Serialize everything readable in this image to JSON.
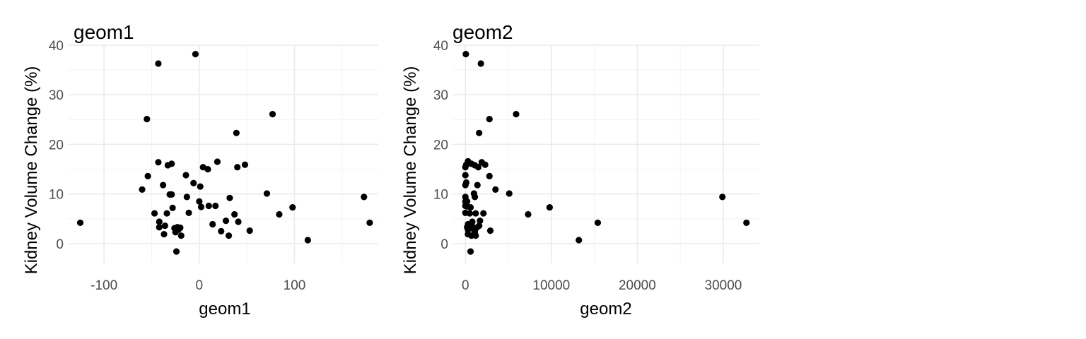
{
  "chart_data": [
    {
      "type": "scatter",
      "title": "geom1",
      "xlabel": "geom1",
      "ylabel": "Kidney Volume Change (%)",
      "xlim": [
        -138,
        188
      ],
      "ylim": [
        -4,
        40
      ],
      "xticks": [
        -100,
        0,
        100
      ],
      "xminor": [
        -50,
        50,
        150
      ],
      "yticks": [
        0,
        10,
        20,
        30,
        40
      ],
      "yminor": [
        5,
        15,
        25,
        35
      ],
      "grid": true,
      "points": [
        {
          "x": -125,
          "y": 4.2
        },
        {
          "x": -60,
          "y": 10.9
        },
        {
          "x": -55,
          "y": 25.1
        },
        {
          "x": -54,
          "y": 13.6
        },
        {
          "x": -47,
          "y": 6.1
        },
        {
          "x": -43,
          "y": 36.3
        },
        {
          "x": -43,
          "y": 16.4
        },
        {
          "x": -42,
          "y": 4.4
        },
        {
          "x": -42,
          "y": 3.3
        },
        {
          "x": -38,
          "y": 11.8
        },
        {
          "x": -37,
          "y": 1.9
        },
        {
          "x": -36,
          "y": 3.6
        },
        {
          "x": -34,
          "y": 6.1
        },
        {
          "x": -33,
          "y": 15.8
        },
        {
          "x": -31,
          "y": 9.9
        },
        {
          "x": -29,
          "y": 9.9
        },
        {
          "x": -29,
          "y": 16.1
        },
        {
          "x": -28,
          "y": 7.2
        },
        {
          "x": -26,
          "y": 3.1
        },
        {
          "x": -25,
          "y": 2.3
        },
        {
          "x": -24,
          "y": -1.6
        },
        {
          "x": -23,
          "y": 3.3
        },
        {
          "x": -22,
          "y": 2.8
        },
        {
          "x": -20,
          "y": 3.2
        },
        {
          "x": -19,
          "y": 1.6
        },
        {
          "x": -14,
          "y": 13.8
        },
        {
          "x": -13,
          "y": 9.4
        },
        {
          "x": -11,
          "y": 6.2
        },
        {
          "x": -6,
          "y": 12.2
        },
        {
          "x": -4,
          "y": 38.2
        },
        {
          "x": 0,
          "y": 8.5
        },
        {
          "x": 1,
          "y": 11.5
        },
        {
          "x": 2,
          "y": 7.4
        },
        {
          "x": 4,
          "y": 15.4
        },
        {
          "x": 9,
          "y": 15.0
        },
        {
          "x": 10,
          "y": 7.6
        },
        {
          "x": 14,
          "y": 3.9
        },
        {
          "x": 17,
          "y": 7.6
        },
        {
          "x": 19,
          "y": 16.5
        },
        {
          "x": 23,
          "y": 2.5
        },
        {
          "x": 28,
          "y": 4.6
        },
        {
          "x": 31,
          "y": 1.6
        },
        {
          "x": 32,
          "y": 9.2
        },
        {
          "x": 37,
          "y": 5.9
        },
        {
          "x": 39,
          "y": 22.3
        },
        {
          "x": 40,
          "y": 15.4
        },
        {
          "x": 41,
          "y": 4.4
        },
        {
          "x": 48,
          "y": 15.9
        },
        {
          "x": 53,
          "y": 2.6
        },
        {
          "x": 71,
          "y": 10.1
        },
        {
          "x": 77,
          "y": 26.1
        },
        {
          "x": 84,
          "y": 5.9
        },
        {
          "x": 98,
          "y": 7.3
        },
        {
          "x": 114,
          "y": 0.7
        },
        {
          "x": 173,
          "y": 9.4
        },
        {
          "x": 179,
          "y": 4.2
        }
      ]
    },
    {
      "type": "scatter",
      "title": "geom2",
      "xlabel": "geom2",
      "ylabel": "Kidney Volume Change (%)",
      "xlim": [
        -1500,
        34200
      ],
      "ylim": [
        -4,
        40
      ],
      "xticks": [
        0,
        10000,
        20000,
        30000
      ],
      "xminor": [
        5000,
        15000,
        25000
      ],
      "yticks": [
        0,
        10,
        20,
        30,
        40
      ],
      "yminor": [
        5,
        15,
        25,
        35
      ],
      "grid": true,
      "points": [
        {
          "x": 50,
          "y": 38.2
        },
        {
          "x": 1800,
          "y": 36.3
        },
        {
          "x": 5900,
          "y": 26.1
        },
        {
          "x": 2800,
          "y": 25.1
        },
        {
          "x": 1600,
          "y": 22.3
        },
        {
          "x": 0,
          "y": 15.4
        },
        {
          "x": 100,
          "y": 15.9
        },
        {
          "x": 300,
          "y": 16.6
        },
        {
          "x": 700,
          "y": 16.1
        },
        {
          "x": 1100,
          "y": 15.8
        },
        {
          "x": 1500,
          "y": 15.4
        },
        {
          "x": 1900,
          "y": 16.4
        },
        {
          "x": 2300,
          "y": 15.9
        },
        {
          "x": 0,
          "y": 13.8
        },
        {
          "x": 100,
          "y": 12.3
        },
        {
          "x": 2800,
          "y": 13.6
        },
        {
          "x": 0,
          "y": 11.8
        },
        {
          "x": 1400,
          "y": 11.8
        },
        {
          "x": 3500,
          "y": 10.9
        },
        {
          "x": 5100,
          "y": 10.1
        },
        {
          "x": 0,
          "y": 9.4
        },
        {
          "x": 1000,
          "y": 10.1
        },
        {
          "x": 1100,
          "y": 9.4
        },
        {
          "x": 0,
          "y": 8.5
        },
        {
          "x": 200,
          "y": 8.5
        },
        {
          "x": 0,
          "y": 7.6
        },
        {
          "x": 200,
          "y": 7.5
        },
        {
          "x": 600,
          "y": 7.3
        },
        {
          "x": 9800,
          "y": 7.3
        },
        {
          "x": 0,
          "y": 6.2
        },
        {
          "x": 500,
          "y": 6.1
        },
        {
          "x": 1200,
          "y": 6.1
        },
        {
          "x": 2100,
          "y": 6.1
        },
        {
          "x": 7300,
          "y": 5.9
        },
        {
          "x": 1700,
          "y": 4.6
        },
        {
          "x": 800,
          "y": 4.4
        },
        {
          "x": 15400,
          "y": 4.2
        },
        {
          "x": 32700,
          "y": 4.2
        },
        {
          "x": 300,
          "y": 3.9
        },
        {
          "x": 1600,
          "y": 3.6
        },
        {
          "x": 200,
          "y": 3.3
        },
        {
          "x": 900,
          "y": 3.3
        },
        {
          "x": 1300,
          "y": 3.2
        },
        {
          "x": 300,
          "y": 2.8
        },
        {
          "x": 1000,
          "y": 2.8
        },
        {
          "x": 2900,
          "y": 2.6
        },
        {
          "x": 1100,
          "y": 2.3
        },
        {
          "x": 300,
          "y": 1.9
        },
        {
          "x": 700,
          "y": 1.6
        },
        {
          "x": 1200,
          "y": 1.6
        },
        {
          "x": 29900,
          "y": 9.4
        },
        {
          "x": 13200,
          "y": 0.7
        },
        {
          "x": 600,
          "y": -1.6
        }
      ]
    }
  ]
}
